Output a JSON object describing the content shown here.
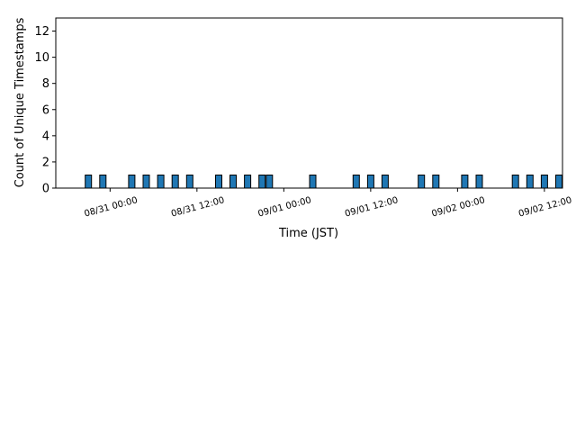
{
  "chart_data": {
    "type": "bar",
    "xlabel": "Time (JST)",
    "ylabel": "Count of Unique Timestamps",
    "ylim": [
      0,
      13
    ],
    "yticks": [
      0,
      2,
      4,
      6,
      8,
      10,
      12
    ],
    "xlim": [
      "08/30 16:30",
      "09/02 14:30"
    ],
    "xticks": [
      "08/31 00:00",
      "08/31 12:00",
      "09/01 00:00",
      "09/01 12:00",
      "09/02 00:00",
      "09/02 12:00"
    ],
    "bar_color": "#1f77b4",
    "edge_color": "#000000",
    "grid": false,
    "x": [
      "08/30 21:00",
      "08/30 23:00",
      "08/31 03:00",
      "08/31 05:00",
      "08/31 07:00",
      "08/31 09:00",
      "08/31 11:00",
      "08/31 15:00",
      "08/31 17:00",
      "08/31 19:00",
      "08/31 21:00",
      "08/31 22:00",
      "09/01 04:00",
      "09/01 10:00",
      "09/01 12:00",
      "09/01 14:00",
      "09/01 19:00",
      "09/01 21:00",
      "09/02 01:00",
      "09/02 03:00",
      "09/02 08:00",
      "09/02 10:00",
      "09/02 12:00",
      "09/02 14:00"
    ],
    "values": [
      1,
      1,
      1,
      1,
      1,
      1,
      1,
      1,
      1,
      1,
      1,
      1,
      1,
      1,
      1,
      1,
      1,
      1,
      1,
      1,
      1,
      1,
      1,
      1
    ]
  }
}
